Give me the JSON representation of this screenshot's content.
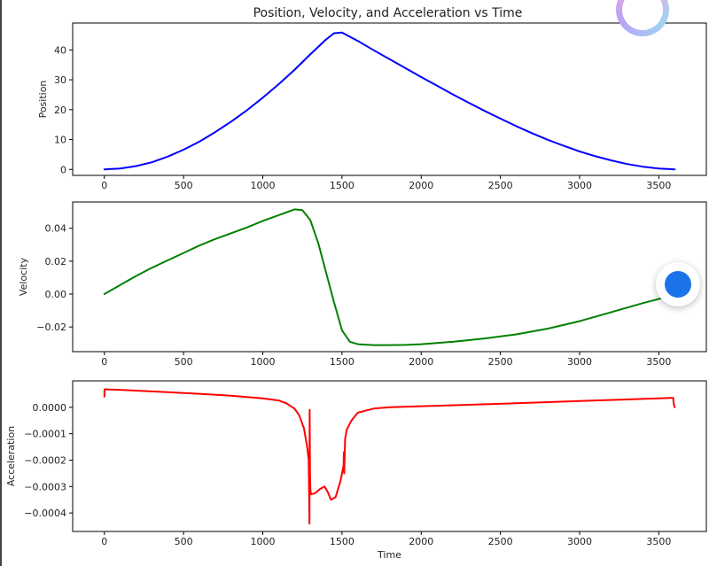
{
  "chart_data": [
    {
      "type": "line",
      "title": "Position, Velocity, and Acceleration vs Time",
      "xlabel": "",
      "ylabel": "Position",
      "xlim": [
        -200,
        3800
      ],
      "ylim": [
        -2,
        49
      ],
      "x_ticks": [
        0,
        500,
        1000,
        1500,
        2000,
        2500,
        3000,
        3500
      ],
      "y_ticks": [
        0,
        10,
        20,
        30,
        40
      ],
      "y_tick_labels": [
        "0",
        "10",
        "20",
        "30",
        "40"
      ],
      "color": "#0000ff",
      "grid": false,
      "series": [
        {
          "x": [
            0,
            100,
            200,
            300,
            400,
            500,
            600,
            700,
            800,
            900,
            1000,
            1100,
            1200,
            1300,
            1400,
            1450,
            1500,
            1600,
            1700,
            1800,
            1900,
            2000,
            2100,
            2200,
            2300,
            2400,
            2500,
            2600,
            2700,
            2800,
            2900,
            3000,
            3100,
            3200,
            3300,
            3400,
            3500,
            3600
          ],
          "values": [
            0,
            0.3,
            1.1,
            2.4,
            4.3,
            6.6,
            9.3,
            12.5,
            16.0,
            19.8,
            24.0,
            28.5,
            33.3,
            38.5,
            43.5,
            45.6,
            45.8,
            43.0,
            39.9,
            36.9,
            33.9,
            30.9,
            28.0,
            25.1,
            22.3,
            19.6,
            17.0,
            14.5,
            12.1,
            9.9,
            7.9,
            6.0,
            4.4,
            3.0,
            1.8,
            0.9,
            0.3,
            0
          ]
        }
      ]
    },
    {
      "type": "line",
      "title": "",
      "xlabel": "",
      "ylabel": "Velocity",
      "xlim": [
        -200,
        3800
      ],
      "ylim": [
        -0.035,
        0.056
      ],
      "x_ticks": [
        0,
        500,
        1000,
        1500,
        2000,
        2500,
        3000,
        3500
      ],
      "y_ticks": [
        -0.02,
        0.0,
        0.02,
        0.04
      ],
      "y_tick_labels": [
        "−0.02",
        "0.00",
        "0.02",
        "0.04"
      ],
      "color": "#008000",
      "grid": false,
      "series": [
        {
          "x": [
            0,
            100,
            200,
            300,
            400,
            500,
            600,
            700,
            800,
            900,
            1000,
            1100,
            1200,
            1250,
            1300,
            1350,
            1400,
            1450,
            1500,
            1550,
            1600,
            1700,
            1800,
            1900,
            2000,
            2200,
            2400,
            2600,
            2800,
            3000,
            3200,
            3400,
            3600
          ],
          "values": [
            0.0,
            0.0055,
            0.011,
            0.016,
            0.0205,
            0.025,
            0.0295,
            0.0335,
            0.037,
            0.0405,
            0.0445,
            0.048,
            0.0515,
            0.051,
            0.045,
            0.031,
            0.013,
            -0.005,
            -0.022,
            -0.029,
            -0.0305,
            -0.031,
            -0.031,
            -0.0309,
            -0.0305,
            -0.029,
            -0.027,
            -0.0245,
            -0.021,
            -0.0165,
            -0.011,
            -0.0055,
            -0.0005
          ]
        }
      ]
    },
    {
      "type": "line",
      "title": "",
      "xlabel": "Time",
      "ylabel": "Acceleration",
      "xlim": [
        -200,
        3800
      ],
      "ylim": [
        -0.00047,
        0.0001
      ],
      "x_ticks": [
        0,
        500,
        1000,
        1500,
        2000,
        2500,
        3000,
        3500
      ],
      "y_ticks": [
        -0.0004,
        -0.0003,
        -0.0002,
        -0.0001,
        0.0
      ],
      "y_tick_labels": [
        "−0.0004",
        "−0.0003",
        "−0.0002",
        "−0.0001",
        "0.0000"
      ],
      "color": "#ff0000",
      "grid": false,
      "series": [
        {
          "x": [
            0,
            1,
            100,
            200,
            400,
            600,
            800,
            1000,
            1100,
            1150,
            1200,
            1230,
            1260,
            1280,
            1290,
            1295,
            1296,
            1298,
            1300,
            1302,
            1304,
            1330,
            1360,
            1390,
            1410,
            1430,
            1460,
            1490,
            1510,
            1512,
            1514,
            1520,
            1530,
            1560,
            1600,
            1700,
            1800,
            2000,
            2500,
            3000,
            3500,
            3590,
            3595,
            3600
          ],
          "values": [
            4e-05,
            6.8e-05,
            6.6e-05,
            6.3e-05,
            5.7e-05,
            5.1e-05,
            4.4e-05,
            3.4e-05,
            2.6e-05,
            1.5e-05,
            -5e-06,
            -3e-05,
            -8e-05,
            -0.00015,
            -0.0002,
            -0.00044,
            -1e-05,
            -0.00025,
            -0.0003,
            -0.00032,
            -0.00033,
            -0.000325,
            -0.00031,
            -0.0003,
            -0.00032,
            -0.00035,
            -0.00034,
            -0.00028,
            -0.00022,
            -0.00017,
            -0.00025,
            -0.00012,
            -8.5e-05,
            -5e-05,
            -2e-05,
            -5e-06,
            0.0,
            4e-06,
            1.3e-05,
            2.4e-05,
            3.4e-05,
            3.6e-05,
            1e-05,
            0.0
          ]
        }
      ]
    }
  ]
}
